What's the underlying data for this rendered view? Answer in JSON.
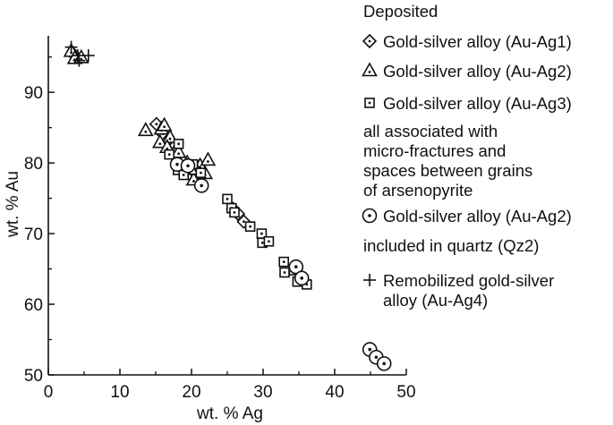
{
  "chart_data": {
    "type": "scatter",
    "xlabel": "wt. % Ag",
    "ylabel": "wt. % Au",
    "xlim": [
      0,
      50
    ],
    "ylim": [
      50,
      98
    ],
    "xticks": [
      "0",
      "10",
      "20",
      "30",
      "40",
      "50"
    ],
    "yticks": [
      "50",
      "60",
      "70",
      "80",
      "90"
    ],
    "grid": false,
    "legend_position": "right",
    "legend": {
      "title": "Deposited",
      "entries": [
        {
          "symbol": "diamond-dot",
          "label": "Gold-silver alloy (Au-Ag1)"
        },
        {
          "symbol": "triangle-dot",
          "label": "Gold-silver alloy (Au-Ag2)"
        },
        {
          "symbol": "square-dot",
          "label": "Gold-silver alloy (Au-Ag3)"
        }
      ],
      "note1": [
        "all associated with",
        "micro-fractures and",
        "spaces between grains",
        "of arsenopyrite"
      ],
      "entry2": {
        "symbol": "circle-dot",
        "label": "Gold-silver alloy (Au-Ag2)"
      },
      "note2": "included in quartz (Qz2)",
      "entry3": {
        "symbol": "plus",
        "label_lines": [
          "Remobilized gold-silver",
          "alloy (Au-Ag4)"
        ]
      }
    },
    "series": [
      {
        "symbol": "diamond-dot",
        "points": [
          [
            3.6,
            95.3
          ],
          [
            15.1,
            85.5
          ],
          [
            16.0,
            84.1
          ],
          [
            16.5,
            83.0
          ],
          [
            17.5,
            82.2
          ],
          [
            20.5,
            79.4
          ],
          [
            20.0,
            78.6
          ],
          [
            25.8,
            73.5
          ],
          [
            26.5,
            72.8
          ],
          [
            27.3,
            71.7
          ]
        ]
      },
      {
        "symbol": "triangle-dot",
        "points": [
          [
            3.2,
            95.8
          ],
          [
            3.7,
            94.8
          ],
          [
            4.6,
            94.9
          ],
          [
            13.6,
            84.6
          ],
          [
            15.8,
            84.8
          ],
          [
            16.2,
            85.3
          ],
          [
            17.0,
            83.6
          ],
          [
            15.6,
            82.9
          ],
          [
            16.6,
            82.2
          ],
          [
            18.2,
            81.5
          ],
          [
            19.4,
            80.0
          ],
          [
            20.0,
            79.4
          ],
          [
            21.2,
            79.6
          ],
          [
            22.3,
            80.4
          ],
          [
            19.3,
            78.4
          ],
          [
            20.3,
            77.6
          ],
          [
            21.9,
            78.5
          ],
          [
            20.6,
            79.1
          ]
        ]
      },
      {
        "symbol": "square-dot",
        "points": [
          [
            16.9,
            81.2
          ],
          [
            18.2,
            82.7
          ],
          [
            18.1,
            79.0
          ],
          [
            18.9,
            78.3
          ],
          [
            20.2,
            79.8
          ],
          [
            21.3,
            78.6
          ],
          [
            25.0,
            74.9
          ],
          [
            25.6,
            73.6
          ],
          [
            26.0,
            73.0
          ],
          [
            28.2,
            71.0
          ],
          [
            29.8,
            70.0
          ],
          [
            29.9,
            68.7
          ],
          [
            30.8,
            68.9
          ],
          [
            32.9,
            66.0
          ],
          [
            33.0,
            64.5
          ],
          [
            34.3,
            64.8
          ],
          [
            34.8,
            63.2
          ],
          [
            36.1,
            62.8
          ]
        ]
      },
      {
        "symbol": "circle-dot",
        "points": [
          [
            18.0,
            79.8
          ],
          [
            19.5,
            79.6
          ],
          [
            21.4,
            76.8
          ],
          [
            34.6,
            65.3
          ],
          [
            35.4,
            63.7
          ],
          [
            44.9,
            53.6
          ],
          [
            45.8,
            52.5
          ],
          [
            46.9,
            51.6
          ]
        ]
      },
      {
        "symbol": "plus",
        "points": [
          [
            3.2,
            96.4
          ],
          [
            4.1,
            95.2
          ],
          [
            5.6,
            95.2
          ],
          [
            4.3,
            94.5
          ]
        ]
      }
    ]
  }
}
